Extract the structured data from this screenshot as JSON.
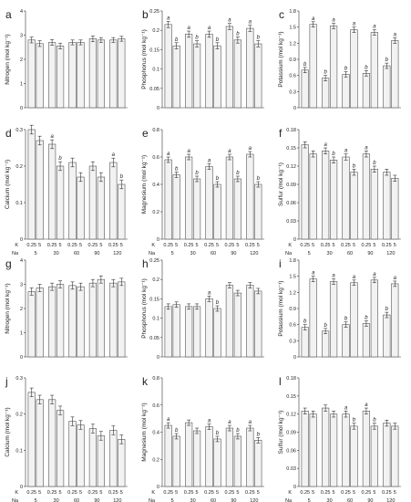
{
  "chart_data": [
    {
      "id": "a",
      "panel_label": "a",
      "ylabel": "Nitrogen (mol kg⁻¹)",
      "ylim": [
        0,
        4
      ],
      "yticks": [
        0,
        1,
        2,
        3,
        4
      ],
      "type": "bar",
      "values": [
        2.8,
        2.65,
        2.7,
        2.55,
        2.7,
        2.7,
        2.85,
        2.8,
        2.8,
        2.85
      ],
      "errors": [
        0.12,
        0.12,
        0.12,
        0.12,
        0.1,
        0.1,
        0.12,
        0.1,
        0.1,
        0.1
      ],
      "sig": [
        "",
        "",
        "",
        "",
        "",
        "",
        "",
        "",
        "",
        ""
      ]
    },
    {
      "id": "b",
      "panel_label": "b",
      "ylabel": "Phosphorus (mol kg⁻¹)",
      "ylim": [
        0,
        0.25
      ],
      "yticks": [
        0,
        0.05,
        0.1,
        0.15,
        0.2,
        0.25
      ],
      "type": "bar",
      "values": [
        0.215,
        0.16,
        0.19,
        0.165,
        0.19,
        0.16,
        0.21,
        0.175,
        0.205,
        0.165
      ],
      "errors": [
        0.008,
        0.008,
        0.008,
        0.008,
        0.008,
        0.008,
        0.008,
        0.008,
        0.008,
        0.008
      ],
      "sig": [
        "a",
        "b",
        "a",
        "b",
        "a",
        "b",
        "a",
        "b",
        "a",
        "b"
      ]
    },
    {
      "id": "c",
      "panel_label": "c",
      "ylabel": "Potassium (mol kg⁻¹)",
      "ylim": [
        0,
        1.8
      ],
      "yticks": [
        0,
        0.3,
        0.6,
        0.9,
        1.2,
        1.5,
        1.8
      ],
      "type": "bar",
      "values": [
        0.7,
        1.55,
        0.55,
        1.52,
        0.62,
        1.45,
        0.64,
        1.4,
        0.78,
        1.25
      ],
      "errors": [
        0.05,
        0.05,
        0.05,
        0.05,
        0.05,
        0.05,
        0.05,
        0.05,
        0.05,
        0.05
      ],
      "sig": [
        "b",
        "a",
        "b",
        "a",
        "b",
        "a",
        "b",
        "a",
        "b",
        "a"
      ]
    },
    {
      "id": "d",
      "panel_label": "d",
      "ylabel": "Calcium (mol kg⁻¹)",
      "ylim": [
        0,
        0.3
      ],
      "yticks": [
        0,
        0.1,
        0.2,
        0.3
      ],
      "type": "bar",
      "values": [
        0.3,
        0.27,
        0.26,
        0.2,
        0.21,
        0.17,
        0.2,
        0.17,
        0.21,
        0.15
      ],
      "errors": [
        0.012,
        0.012,
        0.012,
        0.012,
        0.012,
        0.012,
        0.012,
        0.012,
        0.012,
        0.012
      ],
      "sig": [
        "",
        "",
        "a",
        "b",
        "",
        "",
        "",
        "",
        "a",
        "b"
      ]
    },
    {
      "id": "e",
      "panel_label": "e",
      "ylabel": "Magnesium (mol kg⁻¹)",
      "ylim": [
        0,
        0.8
      ],
      "yticks": [
        0,
        0.2,
        0.4,
        0.6,
        0.8
      ],
      "type": "bar",
      "values": [
        0.58,
        0.47,
        0.6,
        0.44,
        0.53,
        0.4,
        0.6,
        0.44,
        0.62,
        0.4
      ],
      "errors": [
        0.02,
        0.02,
        0.02,
        0.02,
        0.02,
        0.02,
        0.02,
        0.02,
        0.02,
        0.02
      ],
      "sig": [
        "a",
        "b",
        "a",
        "b",
        "a",
        "b",
        "a",
        "b",
        "a",
        "b"
      ]
    },
    {
      "id": "f",
      "panel_label": "f",
      "ylabel": "Sulfur (mol kg⁻¹)",
      "ylim": [
        0,
        0.18
      ],
      "yticks": [
        0,
        0.03,
        0.06,
        0.09,
        0.12,
        0.15,
        0.18
      ],
      "type": "bar",
      "values": [
        0.155,
        0.14,
        0.145,
        0.13,
        0.135,
        0.11,
        0.14,
        0.115,
        0.11,
        0.1
      ],
      "errors": [
        0.005,
        0.005,
        0.005,
        0.005,
        0.005,
        0.005,
        0.005,
        0.005,
        0.005,
        0.005
      ],
      "sig": [
        "",
        "",
        "a",
        "b",
        "a",
        "b",
        "a",
        "b",
        "",
        ""
      ]
    },
    {
      "id": "g",
      "panel_label": "g",
      "ylabel": "Nitrogen (mol kg⁻¹)",
      "ylim": [
        0,
        4
      ],
      "yticks": [
        0,
        1,
        2,
        3,
        4
      ],
      "type": "bar",
      "values": [
        2.7,
        2.85,
        2.9,
        3.0,
        2.95,
        2.9,
        3.05,
        3.2,
        3.05,
        3.1
      ],
      "errors": [
        0.15,
        0.15,
        0.15,
        0.15,
        0.15,
        0.15,
        0.15,
        0.15,
        0.15,
        0.15
      ],
      "sig": [
        "",
        "",
        "",
        "",
        "",
        "",
        "",
        "",
        "",
        ""
      ]
    },
    {
      "id": "h",
      "panel_label": "h",
      "ylabel": "Phosphorus (mol kg⁻¹)",
      "ylim": [
        0,
        0.25
      ],
      "yticks": [
        0,
        0.05,
        0.1,
        0.15,
        0.2,
        0.25
      ],
      "type": "bar",
      "values": [
        0.13,
        0.135,
        0.13,
        0.13,
        0.15,
        0.125,
        0.185,
        0.165,
        0.185,
        0.17
      ],
      "errors": [
        0.007,
        0.007,
        0.007,
        0.007,
        0.007,
        0.007,
        0.007,
        0.007,
        0.007,
        0.007
      ],
      "sig": [
        "",
        "",
        "",
        "",
        "a",
        "b",
        "",
        "",
        "",
        ""
      ]
    },
    {
      "id": "i",
      "panel_label": "i",
      "ylabel": "Potassium (mol kg⁻¹)",
      "ylim": [
        0,
        1.8
      ],
      "yticks": [
        0,
        0.3,
        0.6,
        0.9,
        1.2,
        1.5,
        1.8
      ],
      "type": "bar",
      "values": [
        0.55,
        1.45,
        0.48,
        1.4,
        0.6,
        1.38,
        0.62,
        1.43,
        0.78,
        1.36
      ],
      "errors": [
        0.05,
        0.05,
        0.05,
        0.05,
        0.05,
        0.05,
        0.05,
        0.05,
        0.05,
        0.05
      ],
      "sig": [
        "b",
        "a",
        "b",
        "a",
        "b",
        "a",
        "b",
        "a",
        "b",
        "a"
      ]
    },
    {
      "id": "j",
      "panel_label": "j",
      "ylabel": "Calcium (mol kg⁻¹)",
      "ylim": [
        0,
        0.3
      ],
      "yticks": [
        0,
        0.1,
        0.2,
        0.3
      ],
      "type": "bar",
      "values": [
        0.26,
        0.24,
        0.24,
        0.21,
        0.18,
        0.17,
        0.16,
        0.14,
        0.155,
        0.13
      ],
      "errors": [
        0.012,
        0.012,
        0.012,
        0.012,
        0.012,
        0.012,
        0.012,
        0.012,
        0.012,
        0.012
      ],
      "sig": [
        "",
        "",
        "",
        "",
        "",
        "",
        "",
        "",
        "",
        ""
      ]
    },
    {
      "id": "k",
      "panel_label": "k",
      "ylabel": "Magnesium (mol kg⁻¹)",
      "ylim": [
        0,
        0.8
      ],
      "yticks": [
        0,
        0.2,
        0.4,
        0.6,
        0.8
      ],
      "type": "bar",
      "values": [
        0.45,
        0.37,
        0.47,
        0.41,
        0.44,
        0.35,
        0.43,
        0.37,
        0.43,
        0.34
      ],
      "errors": [
        0.02,
        0.02,
        0.02,
        0.02,
        0.02,
        0.02,
        0.02,
        0.02,
        0.02,
        0.02
      ],
      "sig": [
        "a",
        "b",
        "",
        "",
        "a",
        "b",
        "a",
        "b",
        "a",
        "b"
      ]
    },
    {
      "id": "l",
      "panel_label": "l",
      "ylabel": "Sulfur (mol kg⁻¹)",
      "ylim": [
        0,
        0.18
      ],
      "yticks": [
        0,
        0.03,
        0.06,
        0.09,
        0.12,
        0.15,
        0.18
      ],
      "type": "bar",
      "values": [
        0.125,
        0.12,
        0.13,
        0.12,
        0.12,
        0.1,
        0.125,
        0.1,
        0.105,
        0.1
      ],
      "errors": [
        0.005,
        0.005,
        0.005,
        0.005,
        0.005,
        0.005,
        0.005,
        0.005,
        0.005,
        0.005
      ],
      "sig": [
        "",
        "",
        "",
        "",
        "a",
        "b",
        "a",
        "b",
        "",
        ""
      ]
    }
  ],
  "x_axis": {
    "k_label": "K",
    "k_values": [
      "0.25",
      "5",
      "0.25",
      "5",
      "0.25",
      "5",
      "0.25",
      "5",
      "0.25",
      "5"
    ],
    "na_label": "Na",
    "na_values": [
      "5",
      "30",
      "60",
      "90",
      "120"
    ]
  },
  "colors": {
    "bar_fill": "#f2f2f2",
    "bar_stroke": "#555555",
    "axis": "#333333"
  }
}
